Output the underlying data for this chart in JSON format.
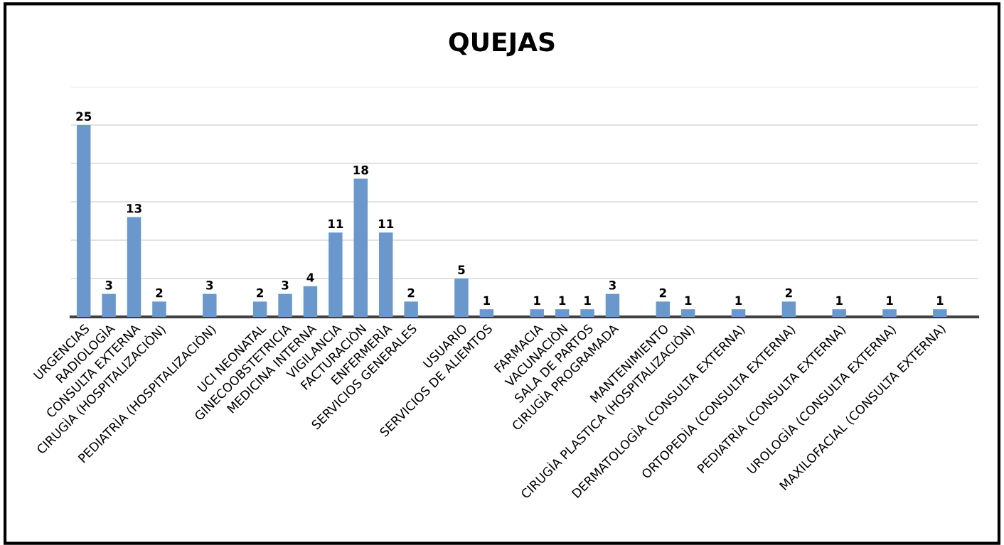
{
  "chart_data": {
    "type": "bar",
    "title": "QUEJAS",
    "categories": [
      "URGENCIAS",
      "RADIOLOGÌA",
      "CONSULTA EXTERNA",
      "CIRUGÌA (HOSPITALIZACIÒN)",
      null,
      "PEDIATRÌA (HOSPITALIZACIÒN)",
      null,
      "UCI NEONATAL",
      "GINECOOBSTETRICIA",
      "MEDICINA INTERNA",
      "VIGILANCIA",
      "FACTURACIÒN",
      "ENFERMERÌA",
      "SERVICIOS GENERALES",
      null,
      "USUARIO",
      "SERVICIOS DE ALIEMTOS",
      null,
      "FARMACIA",
      "VACUNACIÒN",
      "SALA DE PARTOS",
      "CIRUGÌA PROGRAMADA",
      null,
      "MANTENIMIENTO",
      "CIRUGÌA PLASTICA (HOSPITALIZACIÒN)",
      null,
      "DERMATOLOGÌA (CONSULTA EXTERNA)",
      null,
      "ORTOPEDÌA (CONSULTA EXTERNA)",
      null,
      "PEDIATRÌA (CONSULTA EXTERNA)",
      null,
      "UROLOGÌA (CONSULTA EXTERNA)",
      null,
      "MAXILOFACIAL (CONSULTA EXTERNA)",
      null
    ],
    "values": [
      25,
      3,
      13,
      2,
      null,
      3,
      null,
      2,
      3,
      4,
      11,
      18,
      11,
      2,
      null,
      5,
      1,
      null,
      1,
      1,
      1,
      3,
      null,
      2,
      1,
      null,
      1,
      null,
      2,
      null,
      1,
      null,
      1,
      null,
      1,
      null
    ],
    "color": "#6a98cc",
    "data_labels": true,
    "ylim": [
      0,
      30
    ],
    "yticks": [
      {
        "value": 0,
        "label": null
      },
      {
        "value": 5,
        "label": null
      },
      {
        "value": 10,
        "label": null
      },
      {
        "value": 15,
        "label": null
      },
      {
        "value": 20,
        "label": null
      },
      {
        "value": 25,
        "label": null
      },
      {
        "value": 30,
        "label": null
      }
    ],
    "tick_labels": "x",
    "grid": "y",
    "legend": false
  }
}
